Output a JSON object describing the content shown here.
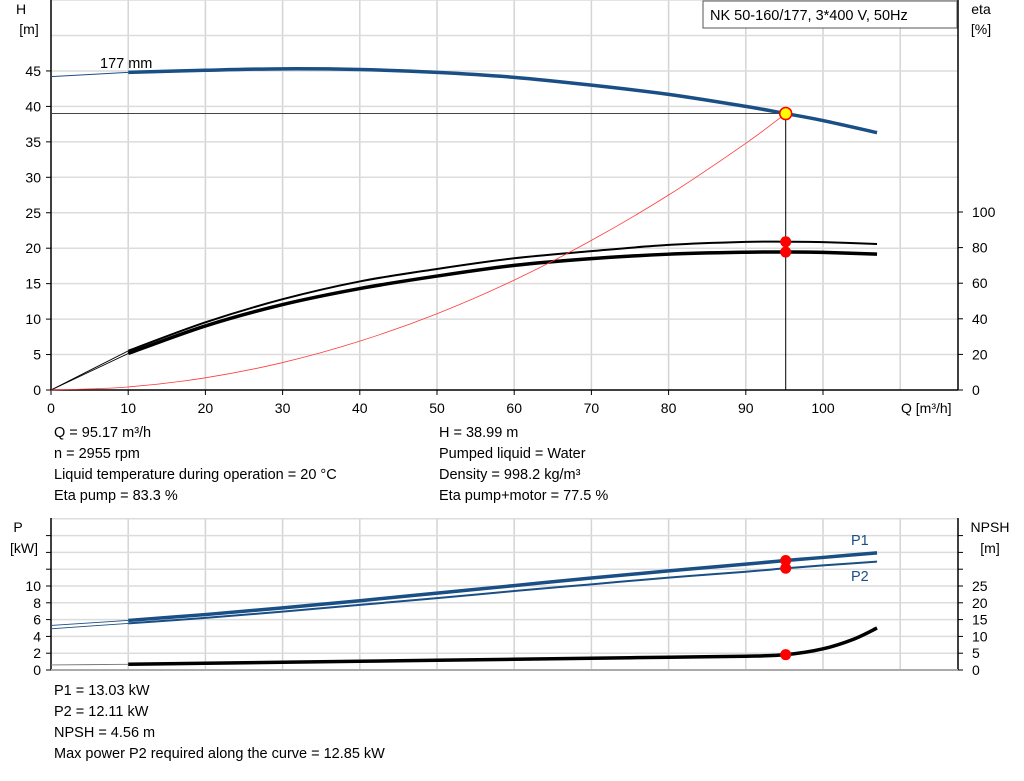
{
  "title_box": "NK 50-160/177, 3*400 V, 50Hz",
  "curve_label": "177 mm",
  "colors": {
    "head": "#1a4f85",
    "eta": "#000000",
    "system": "#ff3b3b",
    "power": "#1a4f85",
    "npsh": "#000000",
    "point": "#ff0000",
    "duty_point_fill": "#ffff00"
  },
  "chart_data": [
    {
      "type": "line",
      "xlabel": "Q [m³/h]",
      "ylabel": "H\n[m]",
      "ylabel_lines": [
        "H",
        "[m]"
      ],
      "y2label_lines": [
        "eta",
        "[%]"
      ],
      "xlim": [
        0,
        117
      ],
      "ylim": [
        0,
        55
      ],
      "y2lim": [
        0,
        100
      ],
      "xticks": [
        0,
        10,
        20,
        30,
        40,
        50,
        60,
        70,
        80,
        90,
        100
      ],
      "yticks": [
        0,
        5,
        10,
        15,
        20,
        25,
        30,
        35,
        40,
        45
      ],
      "y2ticks": [
        0,
        20,
        40,
        60,
        80,
        100
      ],
      "grid": true,
      "series": [
        {
          "key": "head",
          "axis": "y",
          "x": [
            0,
            10,
            20,
            30,
            40,
            50,
            60,
            70,
            80,
            90,
            95.17,
            100,
            107
          ],
          "y": [
            44.2,
            44.8,
            45.1,
            45.3,
            45.2,
            44.8,
            44.1,
            43.0,
            41.7,
            40.0,
            38.99,
            38.0,
            36.3
          ]
        },
        {
          "key": "eta_pump",
          "axis": "y2",
          "x": [
            0,
            10,
            20,
            30,
            40,
            50,
            60,
            70,
            80,
            90,
            95.17,
            100,
            107
          ],
          "y": [
            0,
            22,
            38,
            51,
            61,
            68,
            74,
            78,
            81.5,
            83.2,
            83.3,
            83.1,
            82.0
          ]
        },
        {
          "key": "eta_total",
          "axis": "y2",
          "x": [
            0,
            10,
            20,
            30,
            40,
            50,
            60,
            70,
            80,
            90,
            95.17,
            100,
            107
          ],
          "y": [
            0,
            20.5,
            36,
            48,
            57,
            64,
            70,
            73.8,
            76.3,
            77.4,
            77.5,
            77.3,
            76.3
          ]
        },
        {
          "key": "system",
          "axis": "y",
          "x": [
            0,
            10,
            20,
            30,
            40,
            50,
            60,
            70,
            80,
            90,
            95.17
          ],
          "y": [
            0,
            0.43,
            1.72,
            3.87,
            6.89,
            10.76,
            15.5,
            21.1,
            27.5,
            34.8,
            38.99
          ]
        }
      ],
      "duty_point": {
        "q": 95.17,
        "h": 38.99,
        "eta_pump": 83.3,
        "eta_total": 77.5
      }
    },
    {
      "type": "line",
      "ylabel_lines": [
        "P",
        "[kW]"
      ],
      "y2label_lines": [
        "NPSH",
        "[m]"
      ],
      "xlim": [
        0,
        117
      ],
      "ylim": [
        0,
        18
      ],
      "y2lim": [
        0,
        45
      ],
      "yticks": [
        0,
        2,
        4,
        6,
        8,
        10
      ],
      "y2ticks": [
        0,
        5,
        10,
        15,
        20,
        25
      ],
      "grid": true,
      "series": [
        {
          "key": "P1",
          "name": "P1",
          "axis": "y",
          "x": [
            0,
            10,
            20,
            30,
            40,
            50,
            60,
            70,
            80,
            90,
            95.17,
            100,
            107
          ],
          "y": [
            5.3,
            5.9,
            6.6,
            7.4,
            8.25,
            9.15,
            10.05,
            10.95,
            11.8,
            12.6,
            13.03,
            13.4,
            13.95
          ]
        },
        {
          "key": "P2",
          "name": "P2",
          "axis": "y",
          "x": [
            0,
            10,
            20,
            30,
            40,
            50,
            60,
            70,
            80,
            90,
            95.17,
            100,
            107
          ],
          "y": [
            4.9,
            5.55,
            6.2,
            6.95,
            7.75,
            8.55,
            9.4,
            10.2,
            11.0,
            11.7,
            12.11,
            12.45,
            12.9
          ]
        },
        {
          "key": "NPSH",
          "axis": "y2",
          "x": [
            0,
            10,
            20,
            30,
            40,
            50,
            60,
            70,
            80,
            90,
            95.17,
            100,
            104,
            107
          ],
          "y": [
            1.5,
            1.7,
            2.0,
            2.3,
            2.6,
            2.9,
            3.2,
            3.5,
            3.8,
            4.1,
            4.56,
            6.3,
            9.2,
            12.5
          ]
        }
      ],
      "duty_point": {
        "q": 95.17,
        "p1": 13.03,
        "p2": 12.11,
        "npsh": 4.56
      }
    }
  ],
  "info_top_left": [
    "Q = 95.17 m³/h",
    "n = 2955 rpm",
    "Liquid temperature during operation = 20 °C",
    "Eta pump = 83.3 %"
  ],
  "info_top_right": [
    "H = 38.99 m",
    "Pumped liquid = Water",
    "Density = 998.2 kg/m³",
    "Eta pump+motor = 77.5 %"
  ],
  "info_bottom": [
    "P1 = 13.03 kW",
    "P2 = 12.11 kW",
    "NPSH = 4.56 m",
    "Max power P2 required along the curve = 12.85 kW"
  ]
}
